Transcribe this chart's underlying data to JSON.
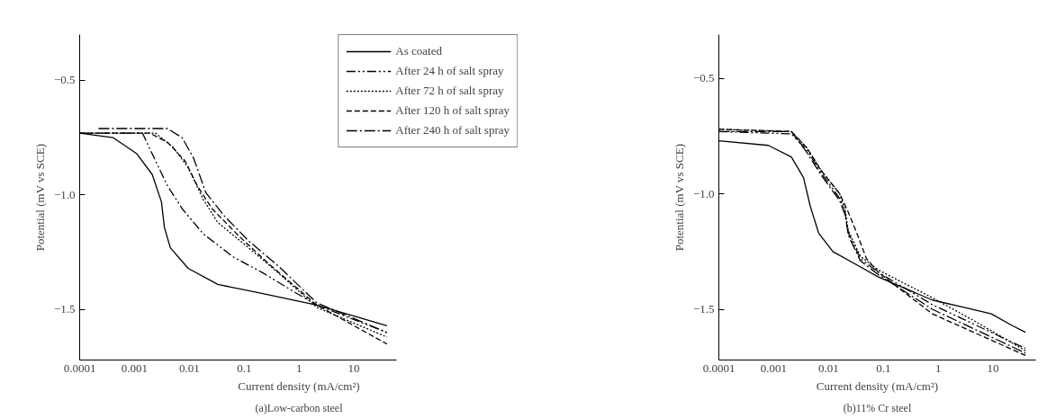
{
  "chart_data": [
    {
      "type": "line",
      "title": "(a)Low-carbon steel",
      "xlabel": "Current density (mA/cm²)",
      "ylabel": "Potential (mV vs SCE)",
      "log": "x",
      "grid": false,
      "legend": "top right",
      "marker": "none",
      "xlim": [
        0.0001,
        60
      ],
      "ylim": [
        -1.72,
        -0.3
      ],
      "xticks": [
        0.0001,
        0.001,
        0.01,
        0.1,
        1,
        10
      ],
      "yticks": [
        {
          "value": -0.5,
          "label": "−0.5"
        },
        {
          "value": -1.0,
          "label": "−1.0"
        },
        {
          "value": -1.5,
          "label": "−1.5"
        }
      ],
      "series": [
        {
          "name": "As coated",
          "color": "#000000",
          "line_style": "solid",
          "x": [
            0.0001,
            0.00041,
            0.0011,
            0.0021,
            0.0031,
            0.0035,
            0.0045,
            0.0095,
            0.033,
            0.22,
            2.1,
            40
          ],
          "values": [
            -0.73,
            -0.75,
            -0.82,
            -0.91,
            -1.03,
            -1.14,
            -1.23,
            -1.32,
            -1.39,
            -1.43,
            -1.48,
            -1.57
          ]
        },
        {
          "name": "After 24 h of salt spray",
          "color": "#000000",
          "line_style": "dashdotdot",
          "x": [
            0.0001,
            0.0014,
            0.0021,
            0.004,
            0.0074,
            0.018,
            0.063,
            0.22,
            0.78,
            2.1,
            40
          ],
          "values": [
            -0.73,
            -0.73,
            -0.82,
            -0.96,
            -1.06,
            -1.17,
            -1.27,
            -1.34,
            -1.42,
            -1.48,
            -1.6
          ]
        },
        {
          "name": "After 72 h of salt spray",
          "color": "#000000",
          "line_style": "dotted",
          "x": [
            0.0001,
            0.0024,
            0.005,
            0.0095,
            0.018,
            0.033,
            0.12,
            0.42,
            2.1,
            40
          ],
          "values": [
            -0.73,
            -0.73,
            -0.79,
            -0.88,
            -1.02,
            -1.12,
            -1.23,
            -1.34,
            -1.49,
            -1.62
          ]
        },
        {
          "name": "After 120 h of salt spray",
          "color": "#000000",
          "line_style": "dashed",
          "x": [
            0.0001,
            0.0019,
            0.004,
            0.0083,
            0.014,
            0.026,
            0.081,
            0.28,
            2.1,
            40
          ],
          "values": [
            -0.73,
            -0.73,
            -0.77,
            -0.85,
            -0.96,
            -1.06,
            -1.18,
            -1.3,
            -1.48,
            -1.65
          ]
        },
        {
          "name": "After 240 h of salt spray",
          "color": "#000000",
          "line_style": "dashdot",
          "x": [
            0.00022,
            0.004,
            0.0074,
            0.012,
            0.02,
            0.043,
            0.12,
            0.42,
            2.1,
            40
          ],
          "values": [
            -0.71,
            -0.71,
            -0.75,
            -0.84,
            -0.99,
            -1.09,
            -1.2,
            -1.31,
            -1.47,
            -1.6
          ]
        }
      ]
    },
    {
      "type": "line",
      "title": "(b)11% Cr steel",
      "xlabel": "Current density (mA/cm²)",
      "ylabel": "Potential (mV vs SCE)",
      "log": "x",
      "grid": false,
      "marker": "none",
      "xlim": [
        0.0001,
        60
      ],
      "ylim": [
        -1.72,
        -0.31
      ],
      "xticks": [
        0.0001,
        0.001,
        0.01,
        0.1,
        1,
        10
      ],
      "yticks": [
        {
          "value": -0.5,
          "label": "−0.5"
        },
        {
          "value": -1.0,
          "label": "−1.0"
        },
        {
          "value": -1.5,
          "label": "−1.5"
        }
      ],
      "series": [
        {
          "color": "#000000",
          "line_style": "solid",
          "x": [
            0.0001,
            0.0008,
            0.0021,
            0.0035,
            0.0046,
            0.0066,
            0.012,
            0.034,
            0.081,
            0.78,
            2.7,
            9.3,
            22,
            39
          ],
          "values": [
            -0.77,
            -0.79,
            -0.84,
            -0.93,
            -1.05,
            -1.17,
            -1.25,
            -1.31,
            -1.36,
            -1.46,
            -1.49,
            -1.52,
            -1.57,
            -1.6
          ]
        },
        {
          "color": "#000000",
          "line_style": "dashdotdot",
          "x": [
            0.0001,
            0.0021,
            0.004,
            0.0074,
            0.016,
            0.02,
            0.023,
            0.038,
            0.081,
            0.78,
            39
          ],
          "values": [
            -0.73,
            -0.74,
            -0.81,
            -0.91,
            -1.02,
            -1.08,
            -1.17,
            -1.28,
            -1.34,
            -1.48,
            -1.67
          ]
        },
        {
          "color": "#000000",
          "line_style": "dotted",
          "x": [
            0.0001,
            0.0021,
            0.004,
            0.0074,
            0.016,
            0.02,
            0.023,
            0.038,
            0.081,
            0.78,
            4.5,
            39
          ],
          "values": [
            -0.72,
            -0.73,
            -0.8,
            -0.9,
            -1.0,
            -1.07,
            -1.16,
            -1.27,
            -1.33,
            -1.45,
            -1.55,
            -1.68
          ]
        },
        {
          "color": "#000000",
          "line_style": "dashed",
          "x": [
            0.0001,
            0.0021,
            0.004,
            0.0074,
            0.016,
            0.023,
            0.034,
            0.049,
            0.081,
            0.78,
            39
          ],
          "values": [
            -0.72,
            -0.73,
            -0.8,
            -0.9,
            -1.0,
            -1.08,
            -1.18,
            -1.28,
            -1.34,
            -1.52,
            -1.7
          ]
        },
        {
          "color": "#000000",
          "line_style": "dashdot",
          "x": [
            0.0001,
            0.0021,
            0.004,
            0.0074,
            0.016,
            0.02,
            0.023,
            0.038,
            0.081,
            0.78,
            39
          ],
          "values": [
            -0.73,
            -0.73,
            -0.82,
            -0.92,
            -1.03,
            -1.09,
            -1.18,
            -1.29,
            -1.35,
            -1.5,
            -1.69
          ]
        }
      ]
    }
  ]
}
